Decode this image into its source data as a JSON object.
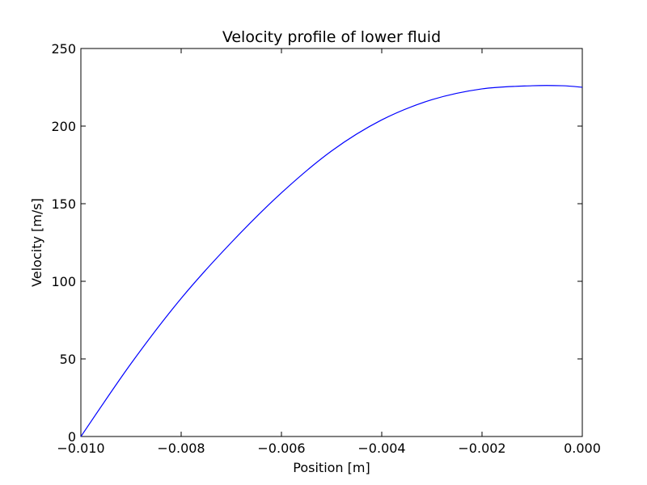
{
  "chart_data": {
    "type": "line",
    "title": "Velocity profile of lower fluid",
    "xlabel": "Position [m]",
    "ylabel": "Velocity [m/s]",
    "xlim": [
      -0.01,
      0.0
    ],
    "ylim": [
      0,
      250
    ],
    "x_ticks": [
      -0.01,
      -0.008,
      -0.006,
      -0.004,
      -0.002,
      0.0
    ],
    "x_tick_labels": [
      "−0.010",
      "−0.008",
      "−0.006",
      "−0.004",
      "−0.002",
      "0.000"
    ],
    "y_ticks": [
      0,
      50,
      100,
      150,
      200,
      250
    ],
    "y_tick_labels": [
      "0",
      "50",
      "100",
      "150",
      "200",
      "250"
    ],
    "grid": false,
    "series": [
      {
        "color": "#0000ff",
        "x": [
          -0.01,
          -0.009,
          -0.008,
          -0.007,
          -0.006,
          -0.005,
          -0.004,
          -0.003,
          -0.002,
          -0.001,
          -0.0004,
          0.0
        ],
        "y": [
          0,
          47,
          89,
          125,
          157,
          184,
          204,
          217,
          224,
          226,
          226,
          225
        ]
      }
    ]
  }
}
